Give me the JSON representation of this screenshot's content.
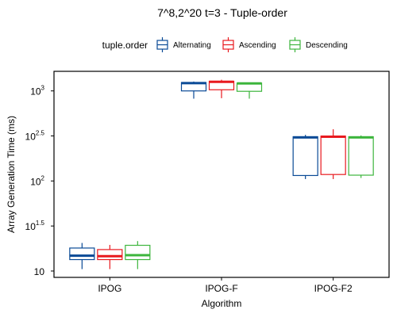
{
  "chart_data": {
    "type": "boxplot",
    "title": "7^8,2^20 t=3 - Tuple-order",
    "xlabel": "Algorithm",
    "ylabel": "Array Generation Time (ms)",
    "y_scale": "log10",
    "ylim": [
      8.5,
      1650
    ],
    "y_ticks": [
      {
        "value": 10,
        "base": "10",
        "exp": ""
      },
      {
        "value": 31.62,
        "base": "10",
        "exp": "1.5"
      },
      {
        "value": 100,
        "base": "10",
        "exp": "2"
      },
      {
        "value": 316.2,
        "base": "10",
        "exp": "2.5"
      },
      {
        "value": 1000,
        "base": "10",
        "exp": "3"
      }
    ],
    "legend": {
      "title": "tuple.order",
      "position": "top"
    },
    "categories": [
      "IPOG",
      "IPOG-F",
      "IPOG-F2"
    ],
    "series": [
      {
        "name": "Alternating",
        "color": "#0a4a96",
        "boxes": [
          {
            "min": 10.5,
            "q1": 13.4,
            "median": 14.8,
            "q3": 18.0,
            "max": 20.5
          },
          {
            "min": 820,
            "q1": 1000,
            "median": 1220,
            "q3": 1240,
            "max": 1270
          },
          {
            "min": 105,
            "q1": 115,
            "median": 305,
            "q3": 310,
            "max": 325
          }
        ]
      },
      {
        "name": "Ascending",
        "color": "#e8191e",
        "boxes": [
          {
            "min": 10.5,
            "q1": 13.4,
            "median": 14.6,
            "q3": 17.3,
            "max": 19.5
          },
          {
            "min": 830,
            "q1": 1030,
            "median": 1260,
            "q3": 1280,
            "max": 1330
          },
          {
            "min": 105,
            "q1": 118,
            "median": 310,
            "q3": 315,
            "max": 375
          }
        ]
      },
      {
        "name": "Descending",
        "color": "#3cb53c",
        "boxes": [
          {
            "min": 10.5,
            "q1": 13.4,
            "median": 15.0,
            "q3": 19.3,
            "max": 21.5
          },
          {
            "min": 820,
            "q1": 990,
            "median": 1210,
            "q3": 1220,
            "max": 1240
          },
          {
            "min": 108,
            "q1": 116,
            "median": 305,
            "q3": 310,
            "max": 320
          }
        ]
      }
    ]
  }
}
